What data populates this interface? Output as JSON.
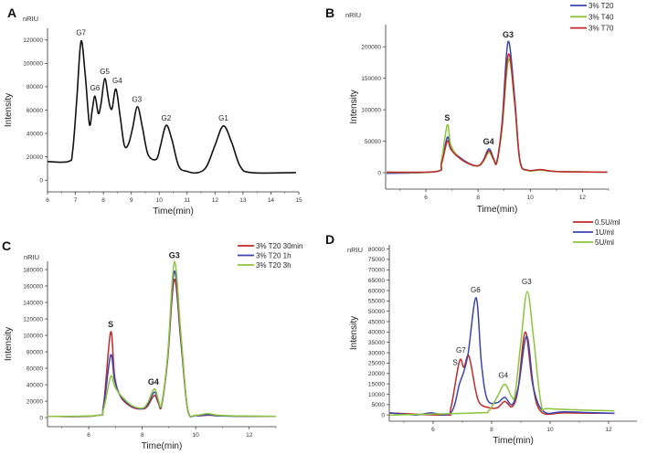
{
  "chart_data": [
    {
      "panel": "A",
      "type": "line",
      "unit": "nRIU",
      "xlabel": "Time(min)",
      "ylabel": "Intensity",
      "xlim": [
        6,
        15
      ],
      "ylim": [
        -10000,
        130000
      ],
      "xticks": [
        6,
        7,
        8,
        9,
        10,
        11,
        12,
        13,
        14,
        15
      ],
      "yticks": [
        0,
        20000,
        40000,
        60000,
        80000,
        100000,
        120000
      ],
      "legend": null,
      "series": [
        {
          "name": "sample",
          "color": "#111111",
          "points": [
            [
              6,
              16000
            ],
            [
              6.75,
              16000
            ],
            [
              6.9,
              25000
            ],
            [
              7.05,
              70000
            ],
            [
              7.2,
              119000
            ],
            [
              7.35,
              90000
            ],
            [
              7.5,
              48000
            ],
            [
              7.6,
              60000
            ],
            [
              7.7,
              72000
            ],
            [
              7.82,
              57000
            ],
            [
              7.92,
              66000
            ],
            [
              8.05,
              87000
            ],
            [
              8.18,
              70000
            ],
            [
              8.25,
              62000
            ],
            [
              8.32,
              62000
            ],
            [
              8.45,
              78000
            ],
            [
              8.6,
              55000
            ],
            [
              8.75,
              30000
            ],
            [
              8.9,
              31000
            ],
            [
              9.05,
              45000
            ],
            [
              9.22,
              63000
            ],
            [
              9.4,
              45000
            ],
            [
              9.6,
              22000
            ],
            [
              9.9,
              18000
            ],
            [
              10.05,
              30000
            ],
            [
              10.25,
              47000
            ],
            [
              10.45,
              35000
            ],
            [
              10.7,
              12000
            ],
            [
              11,
              7500
            ],
            [
              11.4,
              6500
            ],
            [
              11.7,
              12000
            ],
            [
              12,
              30000
            ],
            [
              12.3,
              46500
            ],
            [
              12.6,
              32000
            ],
            [
              12.9,
              12000
            ],
            [
              13.3,
              6500
            ],
            [
              14.9,
              6500
            ]
          ]
        }
      ],
      "annotations": [
        {
          "text": "G7",
          "x": 7.2,
          "y": 124000,
          "bold": false
        },
        {
          "text": "G6",
          "x": 7.7,
          "y": 77000,
          "bold": false
        },
        {
          "text": "G5",
          "x": 8.05,
          "y": 91000,
          "bold": false
        },
        {
          "text": "G4",
          "x": 8.5,
          "y": 83000,
          "bold": false
        },
        {
          "text": "G3",
          "x": 9.2,
          "y": 67000,
          "bold": false
        },
        {
          "text": "G2",
          "x": 10.25,
          "y": 51000,
          "bold": false
        },
        {
          "text": "G1",
          "x": 12.3,
          "y": 51000,
          "bold": false
        }
      ]
    },
    {
      "panel": "B",
      "type": "line",
      "unit": "nRIU",
      "xlabel": "Time(min)",
      "ylabel": "Intensity",
      "xlim": [
        4.46,
        13
      ],
      "ylim": [
        -26000,
        235000
      ],
      "xticks": [
        6,
        8,
        10,
        12
      ],
      "yticks": [
        0,
        50000,
        100000,
        150000,
        200000
      ],
      "legend": "top-right",
      "series": [
        {
          "name": "3%  T20",
          "color": "#3a45b0",
          "points": [
            [
              4.5,
              -1000
            ],
            [
              6.4,
              2000
            ],
            [
              6.6,
              15000
            ],
            [
              6.82,
              56000
            ],
            [
              6.95,
              40000
            ],
            [
              7.2,
              28000
            ],
            [
              7.6,
              16000
            ],
            [
              8,
              11000
            ],
            [
              8.2,
              20000
            ],
            [
              8.42,
              38000
            ],
            [
              8.6,
              22000
            ],
            [
              8.72,
              18000
            ],
            [
              8.92,
              80000
            ],
            [
              9.15,
              208000
            ],
            [
              9.4,
              120000
            ],
            [
              9.6,
              20000
            ],
            [
              9.9,
              4000
            ],
            [
              10.4,
              5000
            ],
            [
              11,
              2000
            ],
            [
              12.95,
              1000
            ]
          ]
        },
        {
          "name": "3%  T40",
          "color": "#8cc43c",
          "points": [
            [
              4.5,
              500
            ],
            [
              6.4,
              2000
            ],
            [
              6.6,
              20000
            ],
            [
              6.82,
              76000
            ],
            [
              6.95,
              45000
            ],
            [
              7.2,
              27000
            ],
            [
              7.6,
              15000
            ],
            [
              8,
              10500
            ],
            [
              8.2,
              18000
            ],
            [
              8.42,
              32000
            ],
            [
              8.6,
              20000
            ],
            [
              8.72,
              16000
            ],
            [
              8.92,
              70000
            ],
            [
              9.17,
              180000
            ],
            [
              9.4,
              110000
            ],
            [
              9.6,
              18000
            ],
            [
              9.9,
              3500
            ],
            [
              10.4,
              4000
            ],
            [
              11,
              2000
            ],
            [
              12.95,
              1000
            ]
          ]
        },
        {
          "name": "3%  T70",
          "color": "#c0282a",
          "points": [
            [
              4.5,
              1000
            ],
            [
              6.4,
              2000
            ],
            [
              6.6,
              14000
            ],
            [
              6.82,
              50000
            ],
            [
              6.95,
              38000
            ],
            [
              7.2,
              26000
            ],
            [
              7.6,
              15000
            ],
            [
              8,
              11000
            ],
            [
              8.2,
              19000
            ],
            [
              8.42,
              35000
            ],
            [
              8.6,
              21000
            ],
            [
              8.72,
              17000
            ],
            [
              8.92,
              75000
            ],
            [
              9.16,
              188000
            ],
            [
              9.4,
              115000
            ],
            [
              9.6,
              19000
            ],
            [
              9.9,
              4000
            ],
            [
              10.4,
              5000
            ],
            [
              11,
              2000
            ],
            [
              12.95,
              1000
            ]
          ]
        }
      ],
      "annotations": [
        {
          "text": "S",
          "x": 6.82,
          "y": 83000,
          "bold": true
        },
        {
          "text": "G4",
          "x": 8.4,
          "y": 45000,
          "bold": true
        },
        {
          "text": "G3",
          "x": 9.15,
          "y": 215000,
          "bold": true
        }
      ]
    },
    {
      "panel": "C",
      "type": "line",
      "unit": "nRIU",
      "xlabel": "Time(min)",
      "ylabel": "Intensity",
      "xlim": [
        4.46,
        13
      ],
      "ylim": [
        -11000,
        190000
      ],
      "xticks": [
        6,
        8,
        10,
        12
      ],
      "yticks": [
        0,
        20000,
        40000,
        60000,
        80000,
        100000,
        120000,
        140000,
        160000,
        180000
      ],
      "legend": "top-right",
      "series": [
        {
          "name": "3% T20  30min",
          "color": "#c0282a",
          "points": [
            [
              4.5,
              1500
            ],
            [
              6.3,
              2500
            ],
            [
              6.55,
              15000
            ],
            [
              6.82,
              104000
            ],
            [
              6.97,
              50000
            ],
            [
              7.2,
              25000
            ],
            [
              7.6,
              13000
            ],
            [
              8,
              10500
            ],
            [
              8.2,
              14000
            ],
            [
              8.45,
              27000
            ],
            [
              8.6,
              18000
            ],
            [
              8.72,
              14000
            ],
            [
              8.95,
              70000
            ],
            [
              9.2,
              168000
            ],
            [
              9.45,
              90000
            ],
            [
              9.7,
              10000
            ],
            [
              10,
              2500
            ],
            [
              10.5,
              3000
            ],
            [
              11,
              2000
            ],
            [
              13,
              1500
            ]
          ]
        },
        {
          "name": "3% T20  1h",
          "color": "#3a45b0",
          "points": [
            [
              4.5,
              1500
            ],
            [
              6.3,
              2500
            ],
            [
              6.55,
              13000
            ],
            [
              6.82,
              76000
            ],
            [
              6.97,
              45000
            ],
            [
              7.2,
              26000
            ],
            [
              7.6,
              14000
            ],
            [
              8,
              11000
            ],
            [
              8.2,
              16000
            ],
            [
              8.45,
              31000
            ],
            [
              8.6,
              20000
            ],
            [
              8.72,
              15000
            ],
            [
              8.95,
              72000
            ],
            [
              9.2,
              178000
            ],
            [
              9.45,
              95000
            ],
            [
              9.7,
              10000
            ],
            [
              10,
              2500
            ],
            [
              10.5,
              3500
            ],
            [
              11,
              2000
            ],
            [
              13,
              1500
            ]
          ]
        },
        {
          "name": "3% T20  3h",
          "color": "#8cc43c",
          "points": [
            [
              4.5,
              1500
            ],
            [
              6.3,
              2500
            ],
            [
              6.55,
              10000
            ],
            [
              6.82,
              50000
            ],
            [
              6.97,
              38000
            ],
            [
              7.2,
              27000
            ],
            [
              7.6,
              15000
            ],
            [
              8,
              11500
            ],
            [
              8.2,
              18000
            ],
            [
              8.45,
              35000
            ],
            [
              8.6,
              22000
            ],
            [
              8.72,
              16000
            ],
            [
              8.95,
              75000
            ],
            [
              9.2,
              189000
            ],
            [
              9.45,
              100000
            ],
            [
              9.7,
              11000
            ],
            [
              10,
              3000
            ],
            [
              10.45,
              5000
            ],
            [
              11,
              2500
            ],
            [
              13,
              1500
            ]
          ]
        }
      ],
      "annotations": [
        {
          "text": "S",
          "x": 6.82,
          "y": 110000,
          "bold": true
        },
        {
          "text": "G4",
          "x": 8.42,
          "y": 40000,
          "bold": true
        },
        {
          "text": "G3",
          "x": 9.2,
          "y": 194000,
          "bold": true
        }
      ]
    },
    {
      "panel": "D",
      "type": "line",
      "unit": "nRIU",
      "xlabel": "Time(min)",
      "ylabel": "Intensity",
      "xlim": [
        4.5,
        12.97
      ],
      "ylim": [
        -3000,
        82000
      ],
      "xticks": [
        6,
        8,
        10,
        12
      ],
      "yticks": [
        0,
        5000,
        10000,
        15000,
        20000,
        25000,
        30000,
        35000,
        40000,
        45000,
        50000,
        55000,
        60000,
        65000,
        70000,
        75000,
        80000
      ],
      "legend": "top-right",
      "series": [
        {
          "name": "0.5U/ml",
          "color": "#c0282a",
          "points": [
            [
              4.5,
              1000
            ],
            [
              6.4,
              0
            ],
            [
              6.6,
              3000
            ],
            [
              6.9,
              26000
            ],
            [
              7.05,
              23000
            ],
            [
              7.22,
              28500
            ],
            [
              7.45,
              12000
            ],
            [
              7.6,
              5500
            ],
            [
              7.9,
              3500
            ],
            [
              8.2,
              3500
            ],
            [
              8.45,
              6500
            ],
            [
              8.7,
              4000
            ],
            [
              8.9,
              12000
            ],
            [
              9.15,
              40000
            ],
            [
              9.4,
              15000
            ],
            [
              9.7,
              1500
            ],
            [
              10.5,
              1000
            ],
            [
              12.2,
              800
            ]
          ]
        },
        {
          "name": "1U/ml",
          "color": "#3a45b0",
          "points": [
            [
              4.5,
              1000
            ],
            [
              5.4,
              0
            ],
            [
              5.9,
              1000
            ],
            [
              6.6,
              1000
            ],
            [
              6.9,
              15000
            ],
            [
              7.05,
              21000
            ],
            [
              7.2,
              30000
            ],
            [
              7.47,
              56500
            ],
            [
              7.65,
              25000
            ],
            [
              7.85,
              7500
            ],
            [
              8.2,
              6000
            ],
            [
              8.45,
              8500
            ],
            [
              8.7,
              5000
            ],
            [
              8.92,
              14000
            ],
            [
              9.2,
              38000
            ],
            [
              9.45,
              12000
            ],
            [
              9.8,
              1500
            ],
            [
              10.5,
              1500
            ],
            [
              12.2,
              800
            ]
          ]
        },
        {
          "name": "5U/ml",
          "color": "#8cc43c",
          "points": [
            [
              4.5,
              0
            ],
            [
              7.5,
              1000
            ],
            [
              7.9,
              2000
            ],
            [
              8.2,
              9000
            ],
            [
              8.45,
              14800
            ],
            [
              8.68,
              9000
            ],
            [
              8.8,
              10000
            ],
            [
              9,
              35000
            ],
            [
              9.22,
              59500
            ],
            [
              9.45,
              35000
            ],
            [
              9.7,
              5000
            ],
            [
              10,
              3000
            ],
            [
              12.2,
              2000
            ]
          ]
        }
      ],
      "annotations": [
        {
          "text": "S",
          "x": 6.75,
          "y": 24000,
          "bold": false
        },
        {
          "text": "G7",
          "x": 6.95,
          "y": 30000,
          "bold": false
        },
        {
          "text": "G6",
          "x": 7.45,
          "y": 59000,
          "bold": false
        },
        {
          "text": "G4",
          "x": 8.4,
          "y": 18000,
          "bold": false
        },
        {
          "text": "G3",
          "x": 9.2,
          "y": 63000,
          "bold": false
        }
      ]
    }
  ]
}
